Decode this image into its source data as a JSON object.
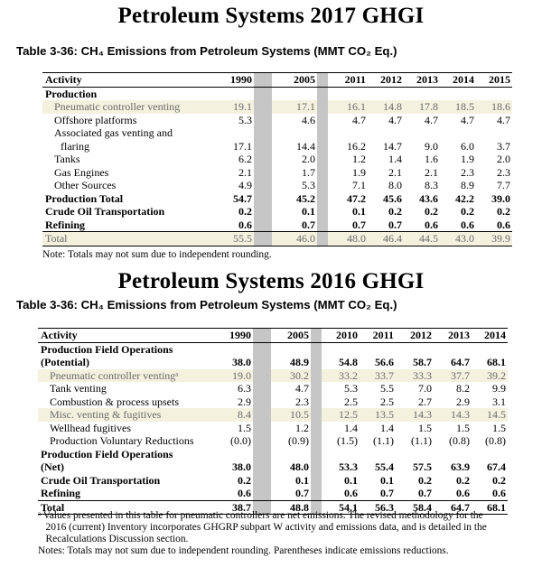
{
  "section1": {
    "title": "Petroleum Systems 2017 GHGI",
    "caption": "Table 3-36:  CH₄ Emissions from Petroleum Systems (MMT CO₂ Eq.)",
    "header": [
      "Activity",
      "1990",
      "2005",
      "2011",
      "2012",
      "2013",
      "2014",
      "2015"
    ],
    "rows": [
      {
        "label": "Production",
        "values": [
          "",
          "",
          "",
          "",
          "",
          "",
          ""
        ],
        "style": "b"
      },
      {
        "label": "Pneumatic controller venting",
        "values": [
          "19.1",
          "17.1",
          "16.1",
          "14.8",
          "17.8",
          "18.5",
          "18.6"
        ],
        "style": "hl i1"
      },
      {
        "label": "Offshore platforms",
        "values": [
          "5.3",
          "4.6",
          "4.7",
          "4.7",
          "4.7",
          "4.7",
          "4.7"
        ],
        "style": "i1"
      },
      {
        "label": "Associated gas venting and",
        "values": [
          "",
          "",
          "",
          "",
          "",
          "",
          ""
        ],
        "style": "i1"
      },
      {
        "label": "flaring",
        "values": [
          "17.1",
          "14.4",
          "16.2",
          "14.7",
          "9.0",
          "6.0",
          "3.7"
        ],
        "style": "i2"
      },
      {
        "label": "Tanks",
        "values": [
          "6.2",
          "2.0",
          "1.2",
          "1.4",
          "1.6",
          "1.9",
          "2.0"
        ],
        "style": "i1"
      },
      {
        "label": "Gas Engines",
        "values": [
          "2.1",
          "1.7",
          "1.9",
          "2.1",
          "2.1",
          "2.3",
          "2.3"
        ],
        "style": "i1"
      },
      {
        "label": "Other Sources",
        "values": [
          "4.9",
          "5.3",
          "7.1",
          "8.0",
          "8.3",
          "8.9",
          "7.7"
        ],
        "style": "i1"
      },
      {
        "label": "Production Total",
        "values": [
          "54.7",
          "45.2",
          "47.2",
          "45.6",
          "43.6",
          "42.2",
          "39.0"
        ],
        "style": "b"
      },
      {
        "label": "Crude Oil Transportation",
        "values": [
          "0.2",
          "0.1",
          "0.1",
          "0.2",
          "0.2",
          "0.2",
          "0.2"
        ],
        "style": "b"
      },
      {
        "label": "Refining",
        "values": [
          "0.6",
          "0.7",
          "0.7",
          "0.7",
          "0.6",
          "0.6",
          "0.6"
        ],
        "style": "b"
      },
      {
        "label": "Total",
        "values": [
          "55.5",
          "46.0",
          "48.0",
          "46.4",
          "44.5",
          "43.0",
          "39.9"
        ],
        "style": "tot2"
      }
    ],
    "notes": [
      "Note: Totals may not sum due to independent rounding."
    ]
  },
  "section2": {
    "title": "Petroleum Systems 2016 GHGI",
    "caption": "Table 3-36:  CH₄ Emissions from Petroleum Systems (MMT CO₂ Eq.)",
    "header": [
      "Activity",
      "1990",
      "2005",
      "2010",
      "2011",
      "2012",
      "2013",
      "2014"
    ],
    "rows": [
      {
        "label": "Production Field Operations",
        "values": [
          "",
          "",
          "",
          "",
          "",
          "",
          ""
        ],
        "style": "b"
      },
      {
        "label": "(Potential)",
        "values": [
          "38.0",
          "48.9",
          "54.8",
          "56.6",
          "58.7",
          "64.7",
          "68.1"
        ],
        "style": "b"
      },
      {
        "label": "Pneumatic controller ventingᵃ",
        "values": [
          "19.0",
          "30.2",
          "33.2",
          "33.7",
          "33.3",
          "37.7",
          "39.2"
        ],
        "style": "hl i1"
      },
      {
        "label": "Tank venting",
        "values": [
          "6.3",
          "4.7",
          "5.3",
          "5.5",
          "7.0",
          "8.2",
          "9.9"
        ],
        "style": "i1"
      },
      {
        "label": "Combustion & process upsets",
        "values": [
          "2.9",
          "2.3",
          "2.5",
          "2.5",
          "2.7",
          "2.9",
          "3.1"
        ],
        "style": "i1"
      },
      {
        "label": "Misc. venting & fugitives",
        "values": [
          "8.4",
          "10.5",
          "12.5",
          "13.5",
          "14.3",
          "14.3",
          "14.5"
        ],
        "style": "hl i1"
      },
      {
        "label": "Wellhead fugitives",
        "values": [
          "1.5",
          "1.2",
          "1.4",
          "1.4",
          "1.5",
          "1.5",
          "1.5"
        ],
        "style": "i1"
      },
      {
        "label": "Production Voluntary Reductions",
        "values": [
          "(0.0)",
          "(0.9)",
          "(1.5)",
          "(1.1)",
          "(1.1)",
          "(0.8)",
          "(0.8)"
        ],
        "style": "i1"
      },
      {
        "label": "Production Field Operations",
        "values": [
          "",
          "",
          "",
          "",
          "",
          "",
          ""
        ],
        "style": "b"
      },
      {
        "label": "(Net)",
        "values": [
          "38.0",
          "48.0",
          "53.3",
          "55.4",
          "57.5",
          "63.9",
          "67.4"
        ],
        "style": "b"
      },
      {
        "label": "Crude Oil Transportation",
        "values": [
          "0.2",
          "0.1",
          "0.1",
          "0.1",
          "0.2",
          "0.2",
          "0.2"
        ],
        "style": "b"
      },
      {
        "label": "Refining",
        "values": [
          "0.6",
          "0.7",
          "0.6",
          "0.7",
          "0.7",
          "0.6",
          "0.6"
        ],
        "style": "b"
      },
      {
        "label": "Total",
        "values": [
          "38.7",
          "48.8",
          "54.1",
          "56.3",
          "58.4",
          "64.7",
          "68.1"
        ],
        "style": "tot"
      }
    ],
    "notes": [
      "ᵃ Values presented in this table for pneumatic controllers are net emissions. The revised methodology for the",
      "   2016 (current) Inventory incorporates GHGRP subpart W activity and emissions data, and is detailed in the",
      "   Recalculations Discussion section.",
      "Notes: Totals may not sum due to independent rounding. Parentheses indicate emissions reductions."
    ]
  }
}
